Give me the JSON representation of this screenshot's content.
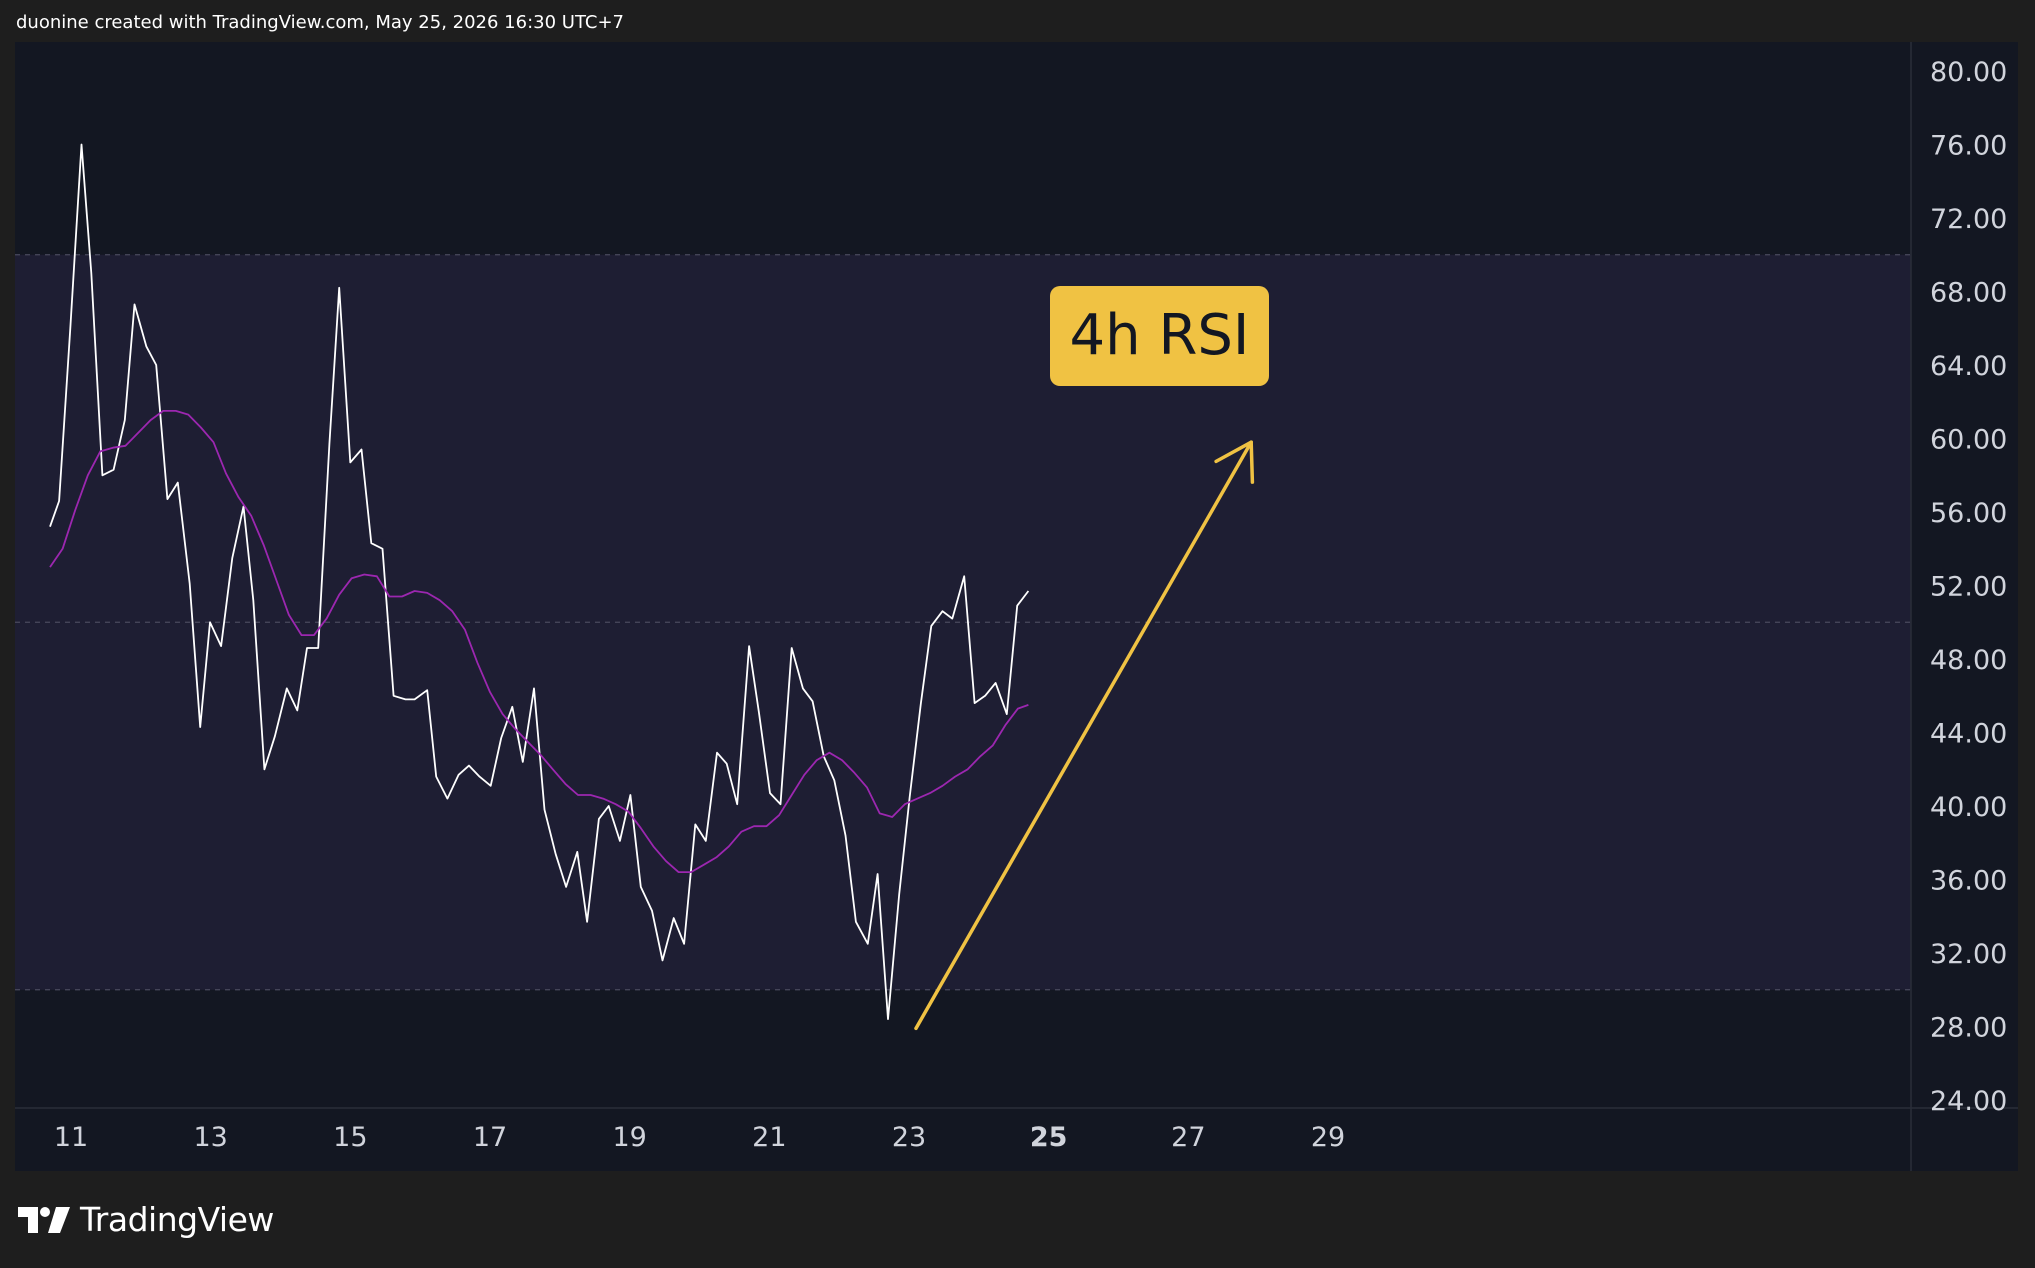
{
  "header": {
    "credit": "duonine created with TradingView.com, May 25, 2026 16:30 UTC+7"
  },
  "footer": {
    "brand": "TradingView",
    "logo_icon": "tradingview-logo-icon"
  },
  "colors": {
    "background": "#1e1e1e",
    "pane": "#131722",
    "band": "#1e1e33",
    "rsi_line": "#ffffff",
    "rsi_ma_line": "#9c27b0",
    "badge": "#f0c243",
    "arrow": "#f0c243",
    "axis_text": "#d1d4dc"
  },
  "chart_data": {
    "type": "line",
    "title": "4h RSI",
    "ylim": [
      24,
      80
    ],
    "xlim": [
      10.7,
      31.4
    ],
    "y_ticks": [
      "80.00",
      "76.00",
      "72.00",
      "68.00",
      "64.00",
      "60.00",
      "56.00",
      "52.00",
      "48.00",
      "44.00",
      "40.00",
      "36.00",
      "32.00",
      "28.00",
      "24.00"
    ],
    "x_ticks": [
      "11",
      "13",
      "15",
      "17",
      "19",
      "21",
      "23",
      "25",
      "27",
      "29"
    ],
    "x_tick_bold": "25",
    "levels": {
      "upper": 70,
      "middle": 50,
      "lower": 30
    },
    "series": [
      {
        "values": [
          [
            10.7,
            55.2
          ],
          [
            10.83,
            56.6
          ],
          [
            10.99,
            66.0
          ],
          [
            11.15,
            76.0
          ],
          [
            11.29,
            69.0
          ],
          [
            11.45,
            58.0
          ],
          [
            11.61,
            58.3
          ],
          [
            11.77,
            61.0
          ],
          [
            11.91,
            67.3
          ],
          [
            12.08,
            65.0
          ],
          [
            12.22,
            64.0
          ],
          [
            12.38,
            56.7
          ],
          [
            12.53,
            57.6
          ],
          [
            12.7,
            52.1
          ],
          [
            12.85,
            44.3
          ],
          [
            12.99,
            50.0
          ],
          [
            13.15,
            48.7
          ],
          [
            13.31,
            53.5
          ],
          [
            13.47,
            56.3
          ],
          [
            13.61,
            51.2
          ],
          [
            13.77,
            42.0
          ],
          [
            13.92,
            43.8
          ],
          [
            14.09,
            46.4
          ],
          [
            14.24,
            45.2
          ],
          [
            14.38,
            48.6
          ],
          [
            14.54,
            48.6
          ],
          [
            14.7,
            59.7
          ],
          [
            14.84,
            68.2
          ],
          [
            15.0,
            58.7
          ],
          [
            15.16,
            59.4
          ],
          [
            15.3,
            54.3
          ],
          [
            15.46,
            54.0
          ],
          [
            15.62,
            46.0
          ],
          [
            15.79,
            45.8
          ],
          [
            15.92,
            45.8
          ],
          [
            16.1,
            46.3
          ],
          [
            16.23,
            41.6
          ],
          [
            16.39,
            40.4
          ],
          [
            16.55,
            41.7
          ],
          [
            16.7,
            42.2
          ],
          [
            16.85,
            41.6
          ],
          [
            17.01,
            41.1
          ],
          [
            17.16,
            43.7
          ],
          [
            17.32,
            45.4
          ],
          [
            17.47,
            42.4
          ],
          [
            17.63,
            46.4
          ],
          [
            17.78,
            39.8
          ],
          [
            17.94,
            37.4
          ],
          [
            18.09,
            35.6
          ],
          [
            18.25,
            37.5
          ],
          [
            18.39,
            33.7
          ],
          [
            18.56,
            39.3
          ],
          [
            18.7,
            40.0
          ],
          [
            18.86,
            38.1
          ],
          [
            19.01,
            40.6
          ],
          [
            19.16,
            35.6
          ],
          [
            19.32,
            34.3
          ],
          [
            19.47,
            31.6
          ],
          [
            19.63,
            33.9
          ],
          [
            19.78,
            32.5
          ],
          [
            19.94,
            39.0
          ],
          [
            20.09,
            38.1
          ],
          [
            20.25,
            42.9
          ],
          [
            20.39,
            42.3
          ],
          [
            20.54,
            40.1
          ],
          [
            20.71,
            48.7
          ],
          [
            20.85,
            45.1
          ],
          [
            21.01,
            40.7
          ],
          [
            21.16,
            40.1
          ],
          [
            21.32,
            48.6
          ],
          [
            21.48,
            46.4
          ],
          [
            21.62,
            45.7
          ],
          [
            21.78,
            42.7
          ],
          [
            21.93,
            41.4
          ],
          [
            22.09,
            38.4
          ],
          [
            22.24,
            33.7
          ],
          [
            22.41,
            32.5
          ],
          [
            22.55,
            36.3
          ],
          [
            22.7,
            28.4
          ],
          [
            22.86,
            35.2
          ],
          [
            23.01,
            40.5
          ],
          [
            23.17,
            45.6
          ],
          [
            23.32,
            49.8
          ],
          [
            23.48,
            50.6
          ],
          [
            23.62,
            50.2
          ],
          [
            23.79,
            52.5
          ],
          [
            23.94,
            45.6
          ],
          [
            24.09,
            46.0
          ],
          [
            24.24,
            46.7
          ],
          [
            24.4,
            45.0
          ],
          [
            24.55,
            50.9
          ],
          [
            24.71,
            51.7
          ]
        ]
      },
      {
        "values": [
          [
            10.7,
            53.0
          ],
          [
            10.88,
            54.0
          ],
          [
            11.06,
            56.1
          ],
          [
            11.24,
            58.0
          ],
          [
            11.42,
            59.3
          ],
          [
            11.6,
            59.5
          ],
          [
            11.78,
            59.6
          ],
          [
            11.96,
            60.3
          ],
          [
            12.14,
            61.0
          ],
          [
            12.32,
            61.5
          ],
          [
            12.5,
            61.5
          ],
          [
            12.68,
            61.3
          ],
          [
            12.86,
            60.6
          ],
          [
            13.04,
            59.8
          ],
          [
            13.22,
            58.1
          ],
          [
            13.4,
            56.8
          ],
          [
            13.58,
            55.8
          ],
          [
            13.76,
            54.2
          ],
          [
            13.94,
            52.3
          ],
          [
            14.12,
            50.4
          ],
          [
            14.3,
            49.3
          ],
          [
            14.48,
            49.3
          ],
          [
            14.66,
            50.2
          ],
          [
            14.84,
            51.5
          ],
          [
            15.02,
            52.4
          ],
          [
            15.2,
            52.6
          ],
          [
            15.38,
            52.5
          ],
          [
            15.56,
            51.4
          ],
          [
            15.74,
            51.4
          ],
          [
            15.92,
            51.7
          ],
          [
            16.1,
            51.6
          ],
          [
            16.28,
            51.2
          ],
          [
            16.46,
            50.6
          ],
          [
            16.64,
            49.6
          ],
          [
            16.82,
            47.8
          ],
          [
            17.0,
            46.2
          ],
          [
            17.18,
            45.0
          ],
          [
            17.36,
            44.2
          ],
          [
            17.54,
            43.5
          ],
          [
            17.72,
            42.8
          ],
          [
            17.9,
            42.0
          ],
          [
            18.08,
            41.2
          ],
          [
            18.26,
            40.6
          ],
          [
            18.44,
            40.6
          ],
          [
            18.62,
            40.4
          ],
          [
            18.8,
            40.1
          ],
          [
            18.98,
            39.7
          ],
          [
            19.16,
            38.8
          ],
          [
            19.34,
            37.8
          ],
          [
            19.52,
            37.0
          ],
          [
            19.7,
            36.4
          ],
          [
            19.88,
            36.4
          ],
          [
            20.06,
            36.8
          ],
          [
            20.24,
            37.2
          ],
          [
            20.42,
            37.8
          ],
          [
            20.6,
            38.6
          ],
          [
            20.78,
            38.9
          ],
          [
            20.96,
            38.9
          ],
          [
            21.14,
            39.5
          ],
          [
            21.32,
            40.6
          ],
          [
            21.5,
            41.7
          ],
          [
            21.68,
            42.5
          ],
          [
            21.86,
            42.9
          ],
          [
            22.04,
            42.5
          ],
          [
            22.22,
            41.8
          ],
          [
            22.4,
            41.0
          ],
          [
            22.58,
            39.6
          ],
          [
            22.76,
            39.4
          ],
          [
            22.94,
            40.1
          ],
          [
            23.12,
            40.4
          ],
          [
            23.3,
            40.7
          ],
          [
            23.48,
            41.1
          ],
          [
            23.66,
            41.6
          ],
          [
            23.84,
            42.0
          ],
          [
            24.02,
            42.7
          ],
          [
            24.2,
            43.3
          ],
          [
            24.38,
            44.4
          ],
          [
            24.56,
            45.3
          ],
          [
            24.71,
            45.5
          ]
        ]
      }
    ],
    "annotations": {
      "label": "4h RSI",
      "arrow": {
        "from": [
          23.1,
          27.9
        ],
        "to": [
          27.9,
          59.8
        ]
      }
    }
  }
}
